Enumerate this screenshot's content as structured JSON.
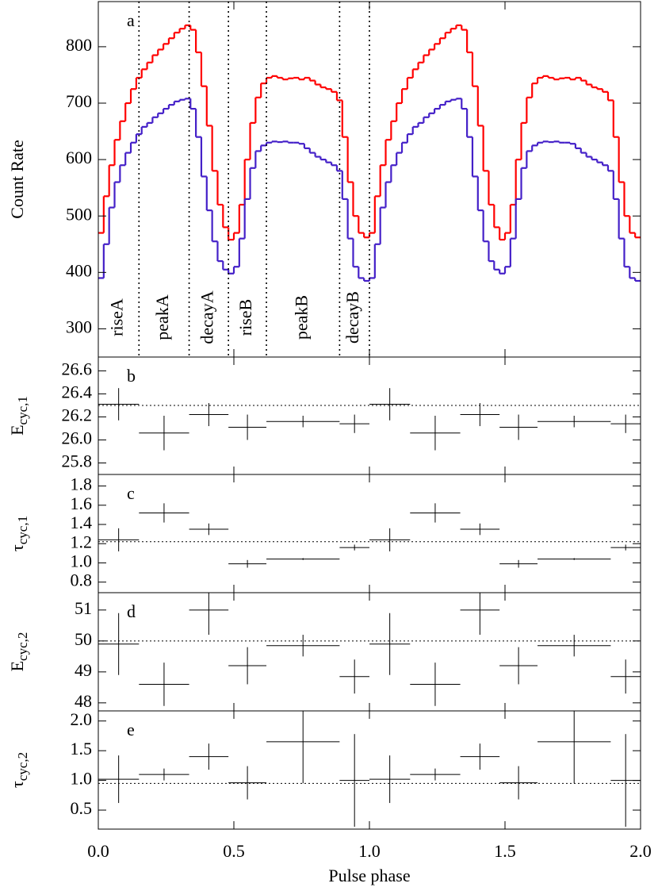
{
  "chart_data": [
    {
      "type": "histogram",
      "label": "a",
      "ylabel": "Count Rate",
      "xlim": [
        0,
        2
      ],
      "xticks": [
        0,
        0.5,
        1,
        1.5,
        2
      ],
      "ylim": [
        250,
        880
      ],
      "yticks": [
        300,
        400,
        500,
        600,
        700,
        800
      ],
      "bins": [
        0,
        0.02,
        0.04,
        0.06,
        0.08,
        0.1,
        0.12,
        0.14,
        0.16,
        0.18,
        0.2,
        0.22,
        0.24,
        0.26,
        0.28,
        0.3,
        0.32,
        0.34,
        0.36,
        0.38,
        0.4,
        0.42,
        0.44,
        0.46,
        0.48,
        0.5,
        0.52,
        0.54,
        0.56,
        0.58,
        0.6,
        0.62,
        0.64,
        0.66,
        0.68,
        0.7,
        0.72,
        0.74,
        0.76,
        0.78,
        0.8,
        0.82,
        0.84,
        0.86,
        0.88,
        0.9,
        0.92,
        0.94,
        0.96,
        0.98,
        1,
        1.02,
        1.04,
        1.06,
        1.08,
        1.1,
        1.12,
        1.14,
        1.16,
        1.18,
        1.2,
        1.22,
        1.24,
        1.26,
        1.28,
        1.3,
        1.32,
        1.34,
        1.36,
        1.38,
        1.4,
        1.42,
        1.44,
        1.46,
        1.48,
        1.5,
        1.52,
        1.54,
        1.56,
        1.58,
        1.6,
        1.62,
        1.64,
        1.66,
        1.68,
        1.7,
        1.72,
        1.74,
        1.76,
        1.78,
        1.8,
        1.82,
        1.84,
        1.86,
        1.88,
        1.9,
        1.92,
        1.94,
        1.96,
        1.98,
        2
      ],
      "series": [
        {
          "color": "#ff0000",
          "values": [
            470,
            535,
            590,
            635,
            668,
            700,
            725,
            745,
            760,
            772,
            785,
            795,
            805,
            815,
            825,
            832,
            838,
            830,
            790,
            730,
            660,
            580,
            520,
            480,
            458,
            470,
            520,
            600,
            665,
            710,
            735,
            745,
            748,
            745,
            742,
            744,
            745,
            742,
            745,
            740,
            733,
            728,
            725,
            720,
            705,
            640,
            560,
            500,
            470,
            462,
            470,
            535,
            590,
            635,
            668,
            700,
            725,
            745,
            760,
            772,
            785,
            795,
            805,
            815,
            825,
            832,
            838,
            830,
            790,
            730,
            660,
            580,
            520,
            480,
            458,
            470,
            520,
            600,
            665,
            710,
            735,
            745,
            748,
            745,
            742,
            744,
            745,
            742,
            745,
            740,
            733,
            728,
            725,
            720,
            705,
            640,
            560,
            500,
            470,
            462
          ]
        },
        {
          "color": "#4420c8",
          "values": [
            390,
            450,
            515,
            560,
            590,
            612,
            630,
            645,
            658,
            665,
            675,
            682,
            690,
            697,
            703,
            706,
            708,
            690,
            640,
            570,
            510,
            455,
            420,
            405,
            398,
            410,
            460,
            530,
            585,
            615,
            625,
            630,
            632,
            631,
            632,
            630,
            630,
            628,
            620,
            612,
            605,
            600,
            595,
            590,
            580,
            530,
            460,
            410,
            390,
            385,
            390,
            450,
            515,
            560,
            590,
            612,
            630,
            645,
            658,
            665,
            675,
            682,
            690,
            697,
            703,
            706,
            708,
            690,
            640,
            570,
            510,
            455,
            420,
            405,
            398,
            410,
            460,
            530,
            585,
            615,
            625,
            630,
            632,
            631,
            632,
            630,
            630,
            628,
            620,
            612,
            605,
            600,
            595,
            590,
            580,
            530,
            460,
            410,
            390,
            385
          ]
        }
      ],
      "phase_intervals": [
        {
          "name": "riseA",
          "start": 0,
          "end": 0.15
        },
        {
          "name": "peakA",
          "start": 0.15,
          "end": 0.335
        },
        {
          "name": "decayA",
          "start": 0.335,
          "end": 0.48
        },
        {
          "name": "riseB",
          "start": 0.48,
          "end": 0.62
        },
        {
          "name": "peakB",
          "start": 0.62,
          "end": 0.89
        },
        {
          "name": "decayB",
          "start": 0.89,
          "end": 1
        }
      ]
    },
    {
      "type": "errorbar",
      "label": "b",
      "ylabel": {
        "symbol": "E",
        "subscript": "cyc,1"
      },
      "xlim": [
        0,
        2
      ],
      "xticks": [
        0,
        0.5,
        1,
        1.5,
        2
      ],
      "ylim": [
        25.7,
        26.72
      ],
      "yticks": [
        25.8,
        {
          "value": 26,
          "label": "26.0"
        },
        26.2,
        26.4,
        26.6
      ],
      "reference": 26.3,
      "x": [
        0.075,
        0.2425,
        0.4075,
        0.55,
        0.755,
        0.945,
        1.075,
        1.2425,
        1.4075,
        1.55,
        1.755,
        1.945
      ],
      "xerr": [
        0.075,
        0.0925,
        0.0725,
        0.07,
        0.135,
        0.055,
        0.075,
        0.0925,
        0.0725,
        0.07,
        0.135,
        0.055
      ],
      "values": [
        26.31,
        26.06,
        26.22,
        26.11,
        26.16,
        26.14,
        26.31,
        26.06,
        26.22,
        26.11,
        26.16,
        26.14
      ],
      "errors": [
        0.14,
        0.15,
        0.1,
        0.11,
        0.05,
        0.08,
        0.14,
        0.15,
        0.1,
        0.11,
        0.05,
        0.08
      ]
    },
    {
      "type": "errorbar",
      "label": "c",
      "ylabel": {
        "symbol": "τ",
        "subscript": "cyc,1"
      },
      "xlim": [
        0,
        2
      ],
      "xticks": [
        0,
        0.5,
        1,
        1.5,
        2
      ],
      "ylim": [
        0.69,
        1.92
      ],
      "yticks": [
        0.8,
        {
          "value": 1,
          "label": "1.0"
        },
        1.2,
        1.4,
        1.6,
        1.8
      ],
      "reference": 1.22,
      "x": [
        0.075,
        0.2425,
        0.4075,
        0.55,
        0.755,
        0.945,
        1.075,
        1.2425,
        1.4075,
        1.55,
        1.755,
        1.945
      ],
      "xerr": [
        0.075,
        0.0925,
        0.0725,
        0.07,
        0.135,
        0.055,
        0.075,
        0.0925,
        0.0725,
        0.07,
        0.135,
        0.055
      ],
      "values": [
        1.24,
        1.52,
        1.35,
        0.99,
        1.04,
        1.16,
        1.24,
        1.52,
        1.35,
        0.99,
        1.04,
        1.16
      ],
      "errors": [
        0.12,
        0.1,
        0.06,
        0.04,
        0.01,
        0.03,
        0.12,
        0.1,
        0.06,
        0.04,
        0.01,
        0.03
      ]
    },
    {
      "type": "errorbar",
      "label": "d",
      "ylabel": {
        "symbol": "E",
        "subscript": "cyc,2"
      },
      "xlim": [
        0,
        2
      ],
      "xticks": [
        0,
        0.5,
        1,
        1.5,
        2
      ],
      "ylim": [
        47.74,
        51.56
      ],
      "yticks": [
        48,
        49,
        50,
        51
      ],
      "reference": 50,
      "x": [
        0.075,
        0.2425,
        0.4075,
        0.55,
        0.755,
        0.945,
        1.075,
        1.2425,
        1.4075,
        1.55,
        1.755,
        1.945
      ],
      "xerr": [
        0.075,
        0.0925,
        0.0725,
        0.07,
        0.135,
        0.055,
        0.075,
        0.0925,
        0.0725,
        0.07,
        0.135,
        0.055
      ],
      "values": [
        49.9,
        48.6,
        51.0,
        49.2,
        49.85,
        48.85,
        49.9,
        48.6,
        51.0,
        49.2,
        49.85,
        48.85
      ],
      "errors": [
        1.0,
        0.7,
        0.8,
        0.6,
        0.35,
        0.55,
        1.0,
        0.7,
        0.8,
        0.6,
        0.35,
        0.55
      ]
    },
    {
      "type": "errorbar",
      "label": "e",
      "ylabel": {
        "symbol": "τ",
        "subscript": "cyc,2"
      },
      "xlabel": "Pulse phase",
      "xlim": [
        0,
        2
      ],
      "xticks": [
        {
          "value": 0,
          "label": "0.0"
        },
        0.5,
        {
          "value": 1,
          "label": "1.0"
        },
        1.5,
        {
          "value": 2,
          "label": "2.0"
        }
      ],
      "ylim": [
        0.18,
        2.17
      ],
      "yticks": [
        0.5,
        {
          "value": 1,
          "label": "1.0"
        },
        1.5,
        {
          "value": 2,
          "label": "2.0"
        }
      ],
      "reference": 0.95,
      "x": [
        0.075,
        0.2425,
        0.4075,
        0.55,
        0.755,
        0.945,
        1.075,
        1.2425,
        1.4075,
        1.55,
        1.755,
        1.945
      ],
      "xerr": [
        0.075,
        0.0925,
        0.0725,
        0.07,
        0.135,
        0.055,
        0.075,
        0.0925,
        0.0725,
        0.07,
        0.135,
        0.055
      ],
      "values": [
        1.02,
        1.1,
        1.4,
        0.96,
        1.65,
        1.0,
        1.02,
        1.1,
        1.4,
        0.96,
        1.65,
        1.0
      ],
      "errors": [
        0.4,
        0.1,
        0.22,
        0.28,
        0.7,
        0.78,
        0.4,
        0.1,
        0.22,
        0.28,
        0.7,
        0.78
      ]
    }
  ]
}
